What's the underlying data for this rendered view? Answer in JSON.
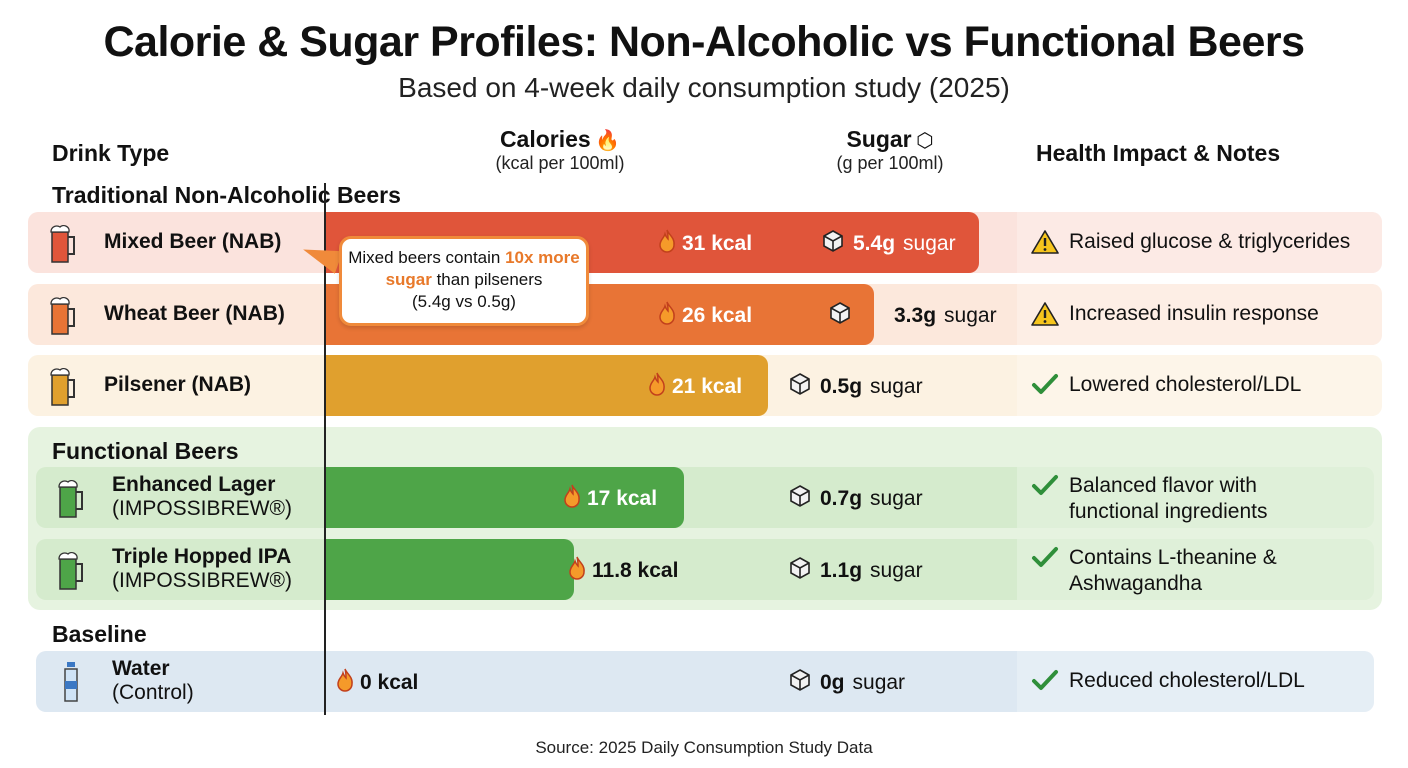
{
  "chart_data": {
    "type": "bar",
    "title": "Calorie & Sugar Profiles: Non-Alcoholic vs Functional Beers",
    "subtitle": "Based on 4-week daily consumption study (2025)",
    "columns": {
      "drink": "Drink Type",
      "calories": "Calories",
      "calories_unit": "(kcal per 100ml)",
      "sugar": "Sugar",
      "sugar_unit": "(g per 100ml)",
      "notes": "Health Impact & Notes"
    },
    "groups": [
      {
        "label": "Traditional Non-Alcoholic Beers",
        "color_bg": "#fbe6df"
      },
      {
        "label": "Functional Beers",
        "color_bg": "#e3f2dd"
      },
      {
        "label": "Baseline",
        "color_bg": "#e4ecf4"
      }
    ],
    "rows": [
      {
        "name": "Mixed Beer (NAB)",
        "sub": "",
        "kcal": 31,
        "kcal_label": "31 kcal",
        "sugar": 5.4,
        "sugar_value": "5.4g",
        "sugar_word": "sugar",
        "note": "Raised glucose & triglycerides",
        "note_icon": "warning-icon",
        "bar_color": "#e0553a",
        "row_color": "#fbe3dd"
      },
      {
        "name": "Wheat Beer (NAB)",
        "sub": "",
        "kcal": 26,
        "kcal_label": "26 kcal",
        "sugar": 3.3,
        "sugar_value": "3.3g",
        "sugar_word": "sugar",
        "note": "Increased insulin response",
        "note_icon": "warning-icon",
        "bar_color": "#e87436",
        "row_color": "#fce8dc"
      },
      {
        "name": "Pilsener (NAB)",
        "sub": "",
        "kcal": 21,
        "kcal_label": "21 kcal",
        "sugar": 0.5,
        "sugar_value": "0.5g",
        "sugar_word": "sugar",
        "note": "Lowered cholesterol/LDL",
        "note_icon": "check-icon",
        "bar_color": "#e0a02e",
        "row_color": "#fcf2e2"
      },
      {
        "name": "Enhanced Lager",
        "sub": "(IMPOSSIBREW®)",
        "kcal": 17,
        "kcal_label": "17 kcal",
        "sugar": 0.7,
        "sugar_value": "0.7g",
        "sugar_word": "sugar",
        "note": "Balanced flavor with functional ingredients",
        "note_icon": "check-icon",
        "bar_color": "#4ea548",
        "row_color": "#d5ebcd"
      },
      {
        "name": "Triple Hopped IPA",
        "sub": "(IMPOSSIBREW®)",
        "kcal": 11.8,
        "kcal_label": "11.8 kcal",
        "sugar": 1.1,
        "sugar_value": "1.1g",
        "sugar_word": "sugar",
        "note": "Contains L-theanine & Ashwagandha",
        "note_icon": "check-icon",
        "bar_color": "#4ea548",
        "row_color": "#d5ebcd"
      },
      {
        "name": "Water",
        "sub": "(Control)",
        "kcal": 0,
        "kcal_label": "0 kcal",
        "sugar": 0,
        "sugar_value": "0g",
        "sugar_word": "sugar",
        "note": "Reduced cholesterol/LDL",
        "note_icon": "check-icon",
        "bar_color": "#4ea548",
        "row_color": "#dde8f2"
      }
    ],
    "annotation": {
      "pre": "Mixed beers contain ",
      "highlight": "10x more sugar",
      "post": " than pilseners",
      "line3": "(5.4g vs 0.5g)"
    },
    "source": "Source: 2025 Daily Consumption Study Data"
  }
}
